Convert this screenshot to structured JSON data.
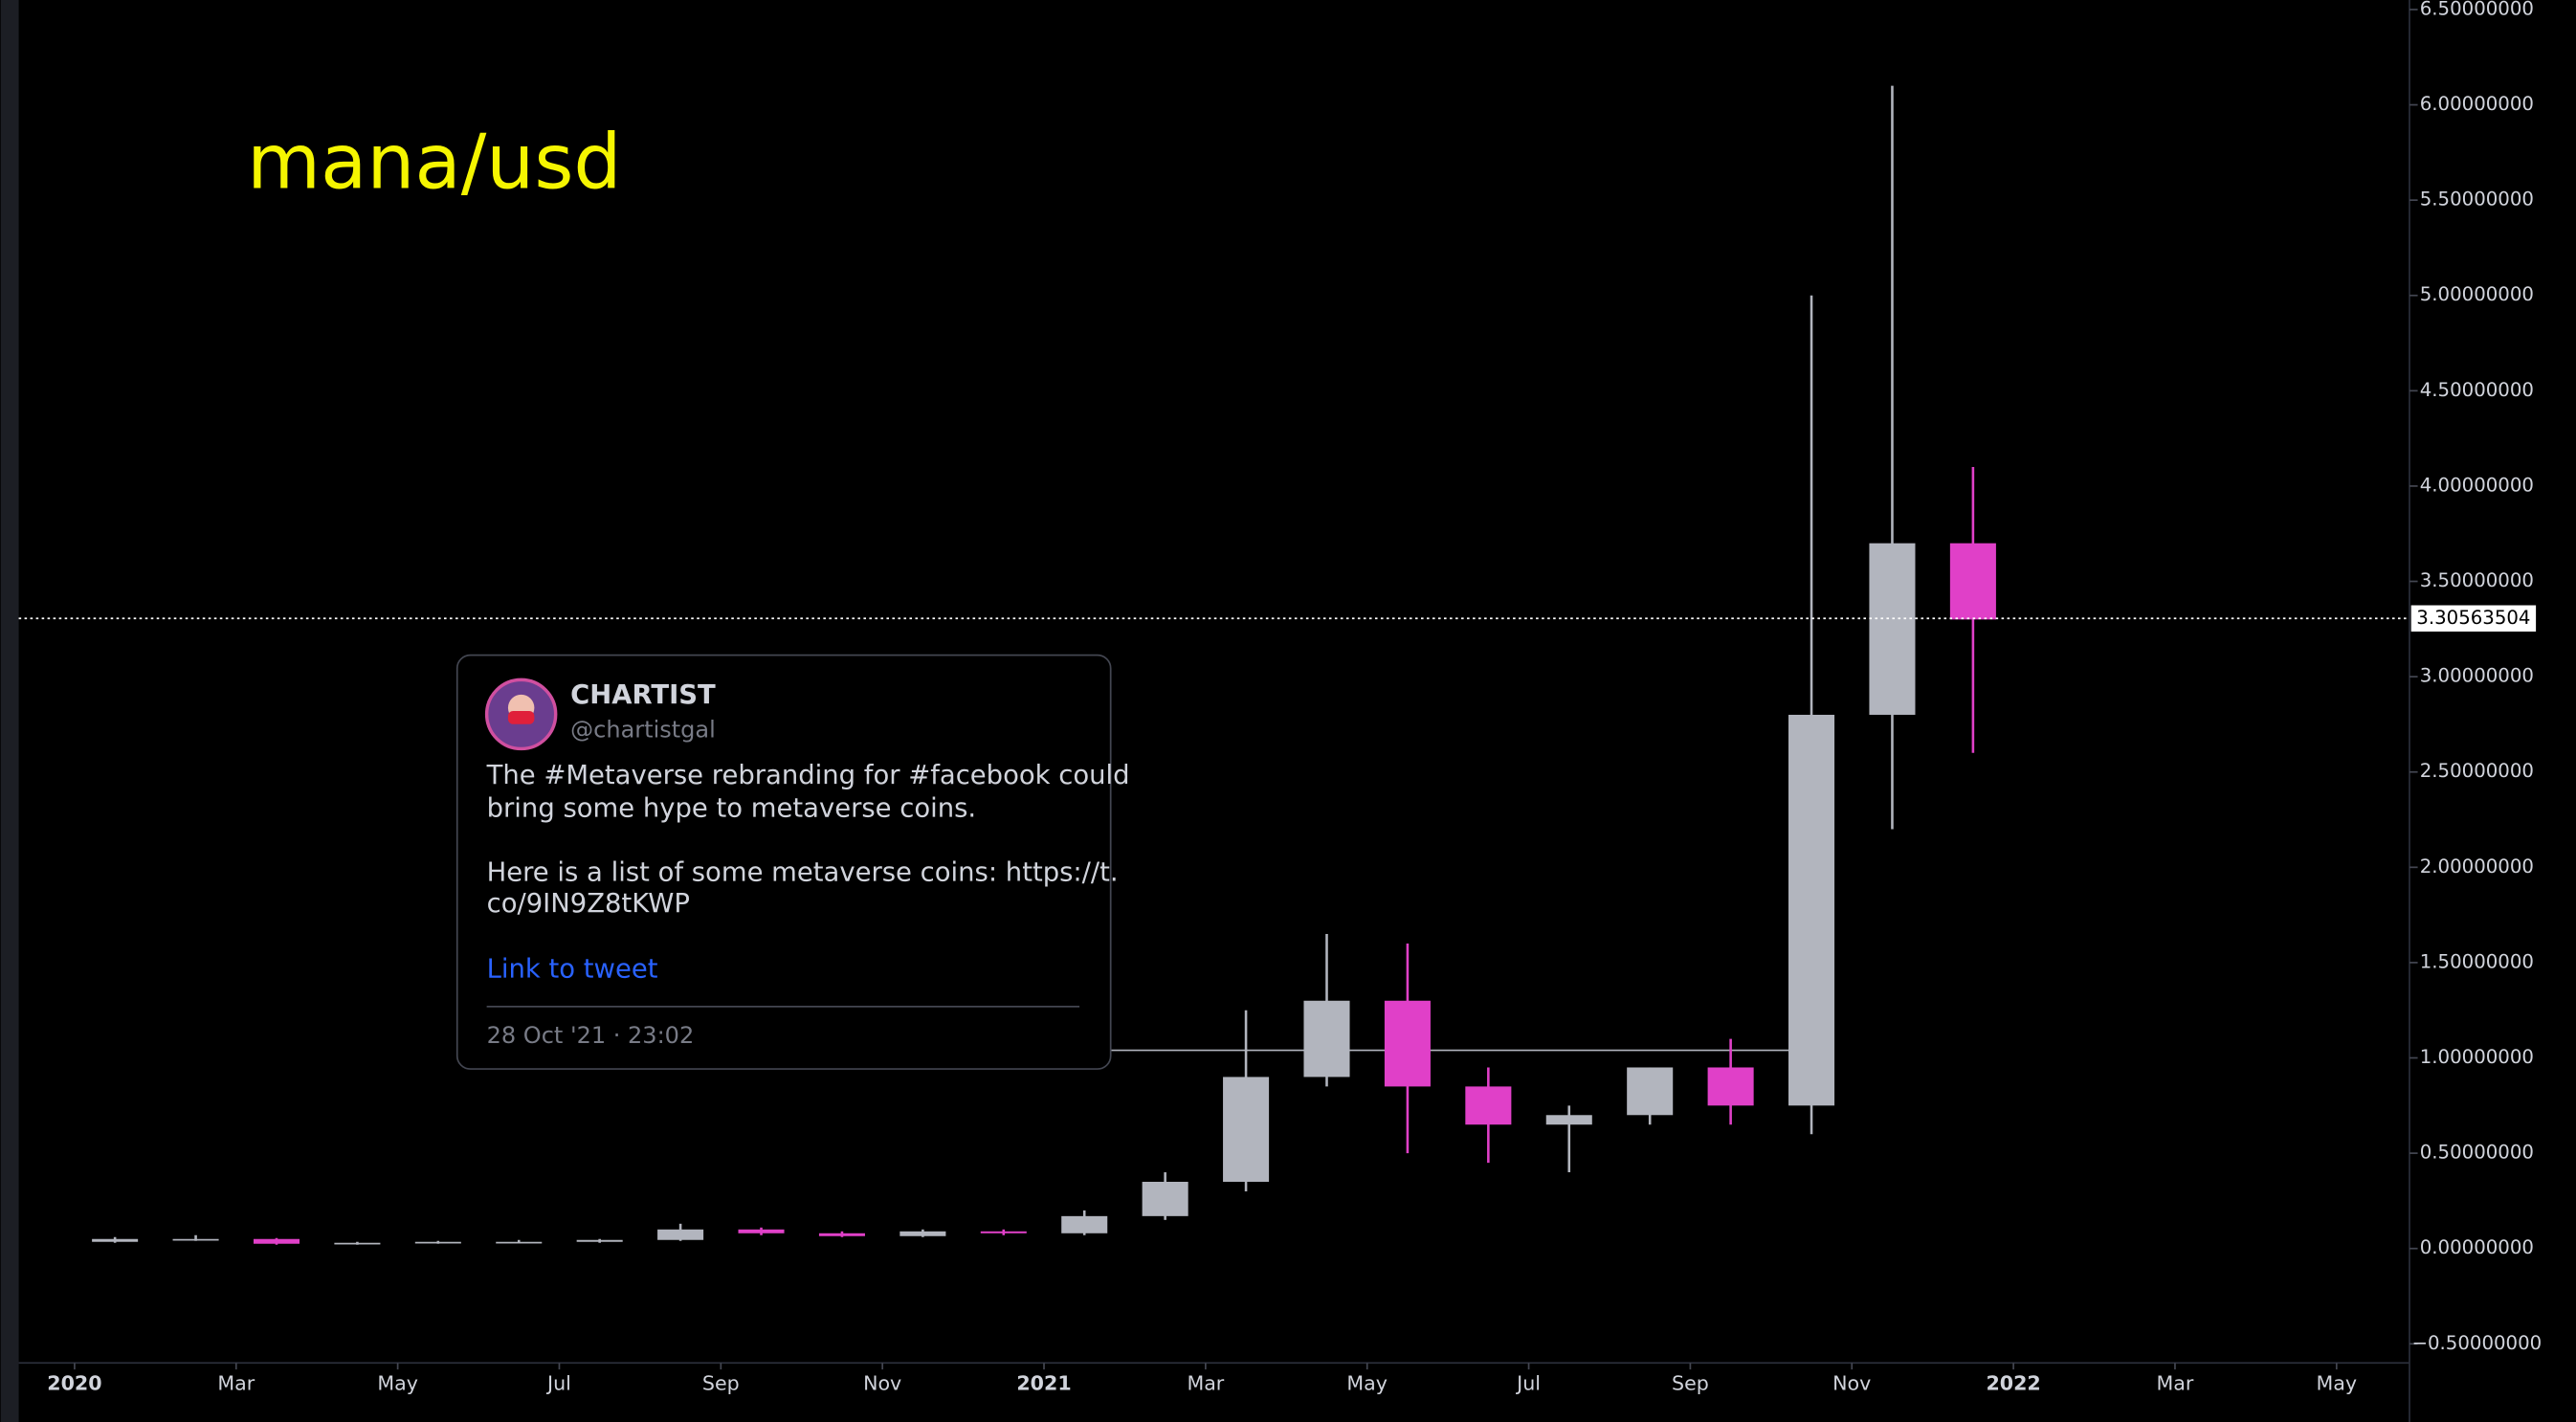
{
  "chart_data": {
    "type": "candlestick",
    "title": "mana/usd",
    "categories": [
      "2020-01",
      "2020-02",
      "2020-03",
      "2020-04",
      "2020-05",
      "2020-06",
      "2020-07",
      "2020-08",
      "2020-09",
      "2020-10",
      "2020-11",
      "2020-12",
      "2021-01",
      "2021-02",
      "2021-03",
      "2021-04",
      "2021-05",
      "2021-06",
      "2021-07",
      "2021-08",
      "2021-09",
      "2021-10",
      "2021-11",
      "2021-12"
    ],
    "open": [
      0.035,
      0.05,
      0.05,
      0.025,
      0.03,
      0.035,
      0.035,
      0.045,
      0.1,
      0.08,
      0.065,
      0.09,
      0.08,
      0.17,
      0.35,
      0.9,
      1.3,
      0.85,
      0.65,
      0.7,
      0.95,
      0.75,
      2.8,
      3.7
    ],
    "high": [
      0.06,
      0.07,
      0.055,
      0.035,
      0.04,
      0.045,
      0.05,
      0.13,
      0.11,
      0.09,
      0.1,
      0.1,
      0.2,
      0.4,
      1.25,
      1.65,
      1.6,
      0.95,
      0.75,
      0.95,
      1.1,
      5.0,
      6.1,
      4.1
    ],
    "low": [
      0.03,
      0.04,
      0.02,
      0.02,
      0.025,
      0.03,
      0.03,
      0.04,
      0.07,
      0.06,
      0.06,
      0.07,
      0.07,
      0.15,
      0.3,
      0.85,
      0.5,
      0.45,
      0.4,
      0.65,
      0.65,
      0.6,
      2.2,
      2.6
    ],
    "close": [
      0.05,
      0.05,
      0.025,
      0.03,
      0.035,
      0.035,
      0.045,
      0.1,
      0.08,
      0.065,
      0.09,
      0.08,
      0.17,
      0.35,
      0.9,
      1.3,
      0.85,
      0.65,
      0.7,
      0.95,
      0.75,
      2.8,
      3.7,
      3.3
    ],
    "up_color": "#b2b5be",
    "down_color": "#e040c8",
    "ylim": [
      -0.6,
      6.55
    ],
    "yticks": [
      {
        "value": 6.5,
        "label": "6.50000000"
      },
      {
        "value": 6,
        "label": "6.00000000"
      },
      {
        "value": 5.5,
        "label": "5.50000000"
      },
      {
        "value": 5,
        "label": "5.00000000"
      },
      {
        "value": 4.5,
        "label": "4.50000000"
      },
      {
        "value": 4,
        "label": "4.00000000"
      },
      {
        "value": 3.5,
        "label": "3.50000000"
      },
      {
        "value": 3,
        "label": "3.00000000"
      },
      {
        "value": 2.5,
        "label": "2.50000000"
      },
      {
        "value": 2,
        "label": "2.00000000"
      },
      {
        "value": 1.5,
        "label": "1.50000000"
      },
      {
        "value": 1,
        "label": "1.00000000"
      },
      {
        "value": 0.5,
        "label": "0.50000000"
      },
      {
        "value": 0,
        "label": "0.00000000"
      },
      {
        "value": -0.5,
        "label": "−0.50000000"
      }
    ],
    "xticks": [
      {
        "value": "2020-01",
        "label": "2020"
      },
      {
        "value": "2020-03",
        "label": "Mar"
      },
      {
        "value": "2020-05",
        "label": "May"
      },
      {
        "value": "2020-07",
        "label": "Jul"
      },
      {
        "value": "2020-09",
        "label": "Sep"
      },
      {
        "value": "2020-11",
        "label": "Nov"
      },
      {
        "value": "2021-01",
        "label": "2021"
      },
      {
        "value": "2021-03",
        "label": "Mar"
      },
      {
        "value": "2021-05",
        "label": "May"
      },
      {
        "value": "2021-07",
        "label": "Jul"
      },
      {
        "value": "2021-09",
        "label": "Sep"
      },
      {
        "value": "2021-11",
        "label": "Nov"
      },
      {
        "value": "2022-01",
        "label": "2022"
      },
      {
        "value": "2022-03",
        "label": "Mar"
      },
      {
        "value": "2022-05",
        "label": "May"
      }
    ],
    "last_price": {
      "value": 3.30563504,
      "label": "3.30563504"
    },
    "level_line": 1.04,
    "annotation": {
      "name": "CHARTIST",
      "handle": "@chartistgal",
      "text_lines": [
        "The #Metaverse rebranding for #facebook could",
        "bring some hype to metaverse coins.",
        "Here is a list of some metaverse coins: https://t.",
        "co/9IN9Z8tKWP"
      ],
      "link": "Link to tweet",
      "date": "28 Oct '21 · 23:02"
    }
  }
}
